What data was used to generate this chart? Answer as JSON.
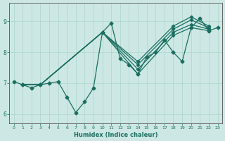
{
  "xlabel": "Humidex (Indice chaleur)",
  "background_color": "#cde8e4",
  "grid_color": "#b0d8d0",
  "line_color": "#1a6e60",
  "xlim": [
    -0.5,
    23.5
  ],
  "ylim": [
    5.7,
    9.6
  ],
  "yticks": [
    6,
    7,
    8,
    9
  ],
  "xticks": [
    0,
    1,
    2,
    3,
    4,
    5,
    6,
    7,
    8,
    9,
    10,
    11,
    12,
    13,
    14,
    15,
    16,
    17,
    18,
    19,
    20,
    21,
    22,
    23
  ],
  "lines": [
    {
      "x": [
        0,
        1,
        2,
        3,
        4,
        5,
        6,
        7,
        8,
        9,
        10,
        11,
        12,
        13,
        14,
        15,
        16,
        17,
        18,
        19,
        20,
        21,
        22,
        23
      ],
      "y": [
        7.05,
        6.95,
        6.85,
        6.95,
        7.0,
        7.05,
        6.55,
        6.05,
        6.4,
        6.85,
        8.65,
        8.95,
        7.8,
        7.6,
        7.3,
        7.85,
        8.0,
        8.4,
        8.0,
        7.7,
        8.8,
        9.1,
        8.7,
        8.8
      ]
    },
    {
      "x": [
        1,
        3,
        10,
        14,
        18,
        20,
        22
      ],
      "y": [
        6.95,
        6.95,
        8.65,
        7.3,
        8.55,
        8.8,
        8.7
      ]
    },
    {
      "x": [
        1,
        3,
        10,
        14,
        18,
        20,
        22
      ],
      "y": [
        6.95,
        6.95,
        8.65,
        7.45,
        8.65,
        8.9,
        8.75
      ]
    },
    {
      "x": [
        1,
        3,
        10,
        14,
        18,
        20,
        22
      ],
      "y": [
        6.95,
        6.95,
        8.65,
        7.6,
        8.75,
        9.05,
        8.8
      ]
    },
    {
      "x": [
        1,
        3,
        10,
        14,
        18,
        20,
        22
      ],
      "y": [
        6.95,
        6.95,
        8.65,
        7.7,
        8.85,
        9.15,
        8.85
      ]
    }
  ]
}
